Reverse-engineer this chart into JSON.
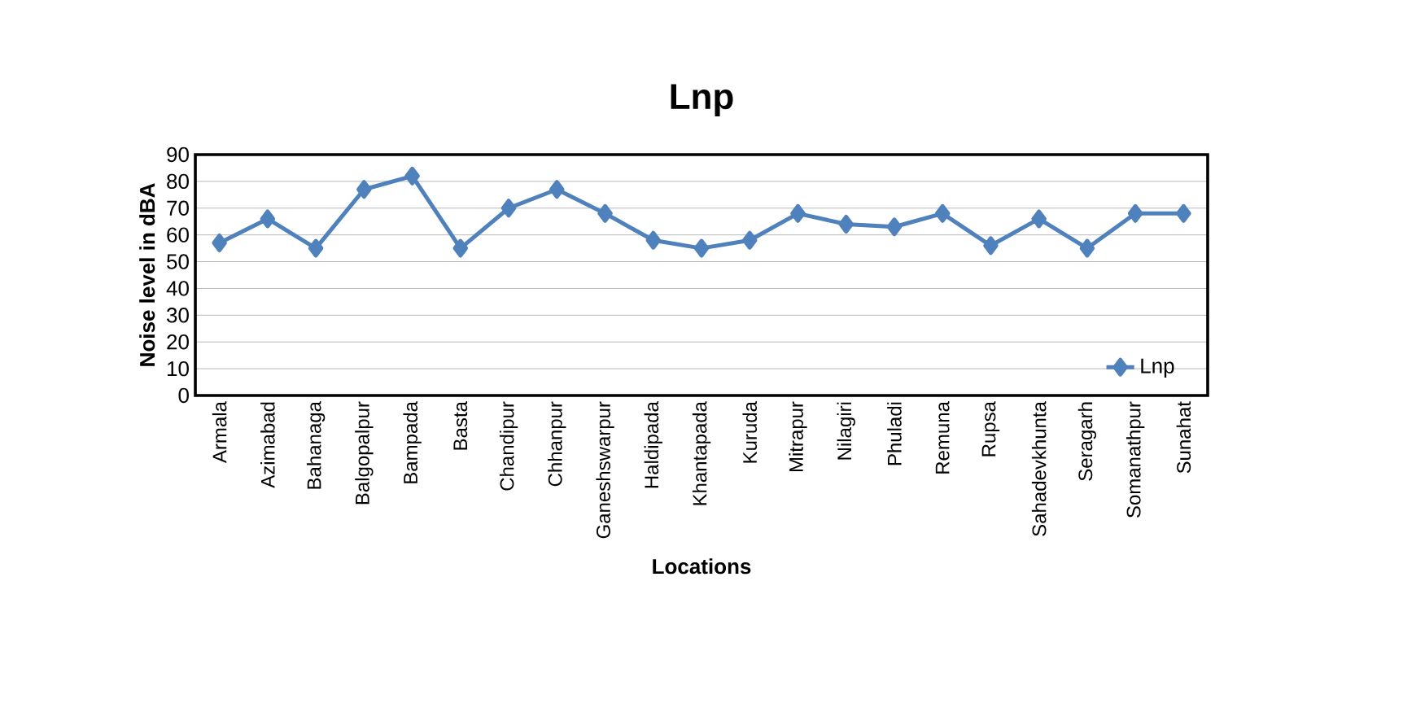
{
  "chart_data": {
    "type": "line",
    "title": "Lnp",
    "xlabel": "Locations",
    "ylabel": "Noise level in dBA",
    "categories": [
      "Armala",
      "Azimabad",
      "Bahanaga",
      "Balgopalpur",
      "Bampada",
      "Basta",
      "Chandipur",
      "Chhanpur",
      "Ganeshswarpur",
      "Haldipada",
      "Khantapada",
      "Kuruda",
      "Mitrapur",
      "Nilagiri",
      "Phuladi",
      "Remuna",
      "Rupsa",
      "Sahadevkhunta",
      "Seragarh",
      "Somanathpur",
      "Sunahat"
    ],
    "series": [
      {
        "name": "Lnp",
        "color": "#4f81bd",
        "values": [
          57,
          66,
          55,
          77,
          82,
          55,
          70,
          77,
          68,
          58,
          55,
          58,
          68,
          64,
          63,
          68,
          56,
          66,
          55,
          68,
          68
        ]
      }
    ],
    "ylim": [
      0,
      90
    ],
    "yticks": [
      0,
      10,
      20,
      30,
      40,
      50,
      60,
      70,
      80,
      90
    ],
    "grid": "y",
    "legend": "bottom right",
    "marker": "diamond",
    "line_style": "solid"
  }
}
